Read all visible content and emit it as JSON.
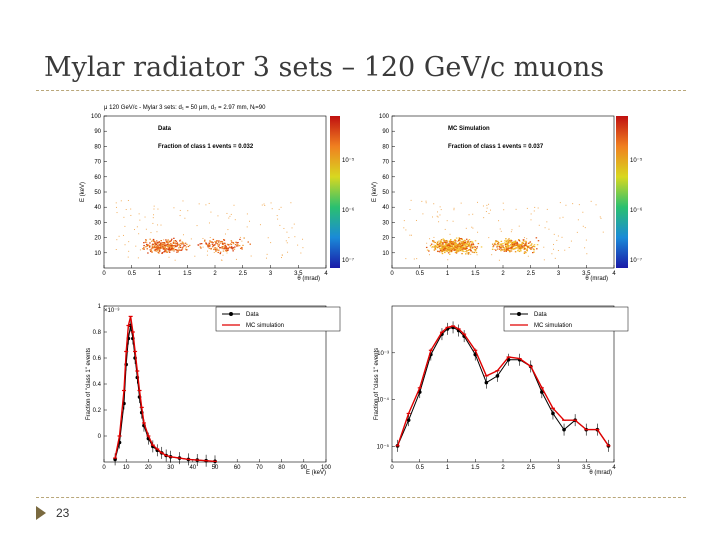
{
  "slide": {
    "title": "Mylar radiator 3 sets – 120 GeV/c muons",
    "page_number": "23",
    "accent_color": "#b9a77a"
  },
  "chart_data": [
    {
      "type": "heatmap",
      "header": "μ 120 GeV/c - Mylar 3 sets: d₁ = 50 μm, d₂ = 2.97 mm, Nᵢ=90",
      "label": "Data",
      "annotation": "Fraction of class 1 events = 0.032",
      "xlabel": "θ (mrad)",
      "ylabel": "E (keV)",
      "xlim": [
        0,
        4
      ],
      "ylim": [
        0,
        100
      ],
      "xticks": [
        "0",
        "0.5",
        "1",
        "1.5",
        "2",
        "2.5",
        "3",
        "3.5",
        "4"
      ],
      "yticks": [
        "10",
        "20",
        "30",
        "40",
        "50",
        "60",
        "70",
        "80",
        "90",
        "100"
      ],
      "colorbar_ticks": [
        "10⁻⁵",
        "10⁻⁶",
        "10⁻⁷"
      ],
      "clusters": [
        {
          "theta": 1.1,
          "energy": 14,
          "weight": "high"
        },
        {
          "theta": 2.1,
          "energy": 14,
          "weight": "medium"
        }
      ]
    },
    {
      "type": "heatmap",
      "label": "MC Simulation",
      "annotation": "Fraction of class 1 events = 0.037",
      "xlabel": "θ (mrad)",
      "ylabel": "E (keV)",
      "xlim": [
        0,
        4
      ],
      "ylim": [
        0,
        100
      ],
      "xticks": [
        "0",
        "0.5",
        "1",
        "1.5",
        "2",
        "2.5",
        "3",
        "3.5",
        "4"
      ],
      "yticks": [
        "10",
        "20",
        "30",
        "40",
        "50",
        "60",
        "70",
        "80",
        "90",
        "100"
      ],
      "colorbar_ticks": [
        "10⁻⁵",
        "10⁻⁶",
        "10⁻⁷"
      ],
      "clusters": [
        {
          "theta": 1.1,
          "energy": 14,
          "weight": "high"
        },
        {
          "theta": 2.2,
          "energy": 14,
          "weight": "medium"
        }
      ]
    },
    {
      "type": "line",
      "xlabel": "E (keV)",
      "ylabel": "Fraction of \"class 1\" events",
      "scale_label": "×10⁻³",
      "xlim": [
        0,
        100
      ],
      "ylim": [
        0,
        1.2
      ],
      "xticks": [
        "0",
        "10",
        "20",
        "30",
        "40",
        "50",
        "60",
        "70",
        "80",
        "90",
        "100"
      ],
      "yticks": [
        "0",
        "0.2",
        "0.4",
        "0.6",
        "0.8",
        "1"
      ],
      "series": [
        {
          "name": "Data",
          "color": "#000000",
          "x": [
            5,
            7,
            9,
            10,
            11,
            12,
            13,
            14,
            15,
            16,
            17,
            18,
            20,
            22,
            24,
            26,
            28,
            30,
            34,
            38,
            42,
            46,
            50
          ],
          "y": [
            0.02,
            0.15,
            0.45,
            0.75,
            0.95,
            1.05,
            0.95,
            0.8,
            0.65,
            0.5,
            0.38,
            0.28,
            0.18,
            0.12,
            0.09,
            0.07,
            0.05,
            0.04,
            0.03,
            0.02,
            0.015,
            0.01,
            0.005
          ]
        },
        {
          "name": "MC simulation",
          "color": "#e00000",
          "x": [
            5,
            7,
            9,
            10,
            11,
            12,
            13,
            14,
            15,
            16,
            17,
            18,
            20,
            22,
            24,
            26,
            28,
            30,
            34,
            38,
            42,
            46,
            50
          ],
          "y": [
            0.03,
            0.2,
            0.55,
            0.85,
            1.05,
            1.12,
            1.0,
            0.85,
            0.7,
            0.55,
            0.42,
            0.3,
            0.2,
            0.13,
            0.1,
            0.07,
            0.05,
            0.04,
            0.03,
            0.02,
            0.015,
            0.01,
            0.005
          ]
        }
      ]
    },
    {
      "type": "line",
      "xlabel": "θ (mrad)",
      "ylabel": "Fraction of \"class 1\" events",
      "scale_label": "10⁻³",
      "yscale": "log",
      "xlim": [
        0,
        4
      ],
      "xticks": [
        "0",
        "0.5",
        "1",
        "1.5",
        "2",
        "2.5",
        "3",
        "3.5",
        "4"
      ],
      "yticks": [
        "10⁻³",
        "10⁻⁴",
        "10⁻⁵"
      ],
      "series": [
        {
          "name": "Data",
          "color": "#000000",
          "x": [
            0.1,
            0.3,
            0.5,
            0.7,
            0.9,
            1.0,
            1.1,
            1.2,
            1.3,
            1.5,
            1.7,
            1.9,
            2.1,
            2.3,
            2.5,
            2.7,
            2.9,
            3.1,
            3.3,
            3.5,
            3.7,
            3.9
          ],
          "y": [
            1e-05,
            3e-05,
            0.0001,
            0.0005,
            0.0012,
            0.0015,
            0.0016,
            0.0014,
            0.0011,
            0.0005,
            0.00015,
            0.0002,
            0.0004,
            0.0004,
            0.0003,
            0.0001,
            4e-05,
            2e-05,
            3e-05,
            2e-05,
            2e-05,
            1e-05
          ]
        },
        {
          "name": "MC simulation",
          "color": "#e00000",
          "x": [
            0.1,
            0.3,
            0.5,
            0.7,
            0.9,
            1.0,
            1.1,
            1.2,
            1.3,
            1.5,
            1.7,
            1.9,
            2.1,
            2.3,
            2.5,
            2.7,
            2.9,
            3.1,
            3.3,
            3.5,
            3.7,
            3.9
          ],
          "y": [
            1e-05,
            4e-05,
            0.00012,
            0.0006,
            0.0013,
            0.0016,
            0.0017,
            0.0015,
            0.0012,
            0.0006,
            0.0002,
            0.00025,
            0.00045,
            0.00042,
            0.0003,
            0.00012,
            5e-05,
            3e-05,
            3e-05,
            2e-05,
            2e-05,
            1e-05
          ]
        }
      ]
    }
  ]
}
